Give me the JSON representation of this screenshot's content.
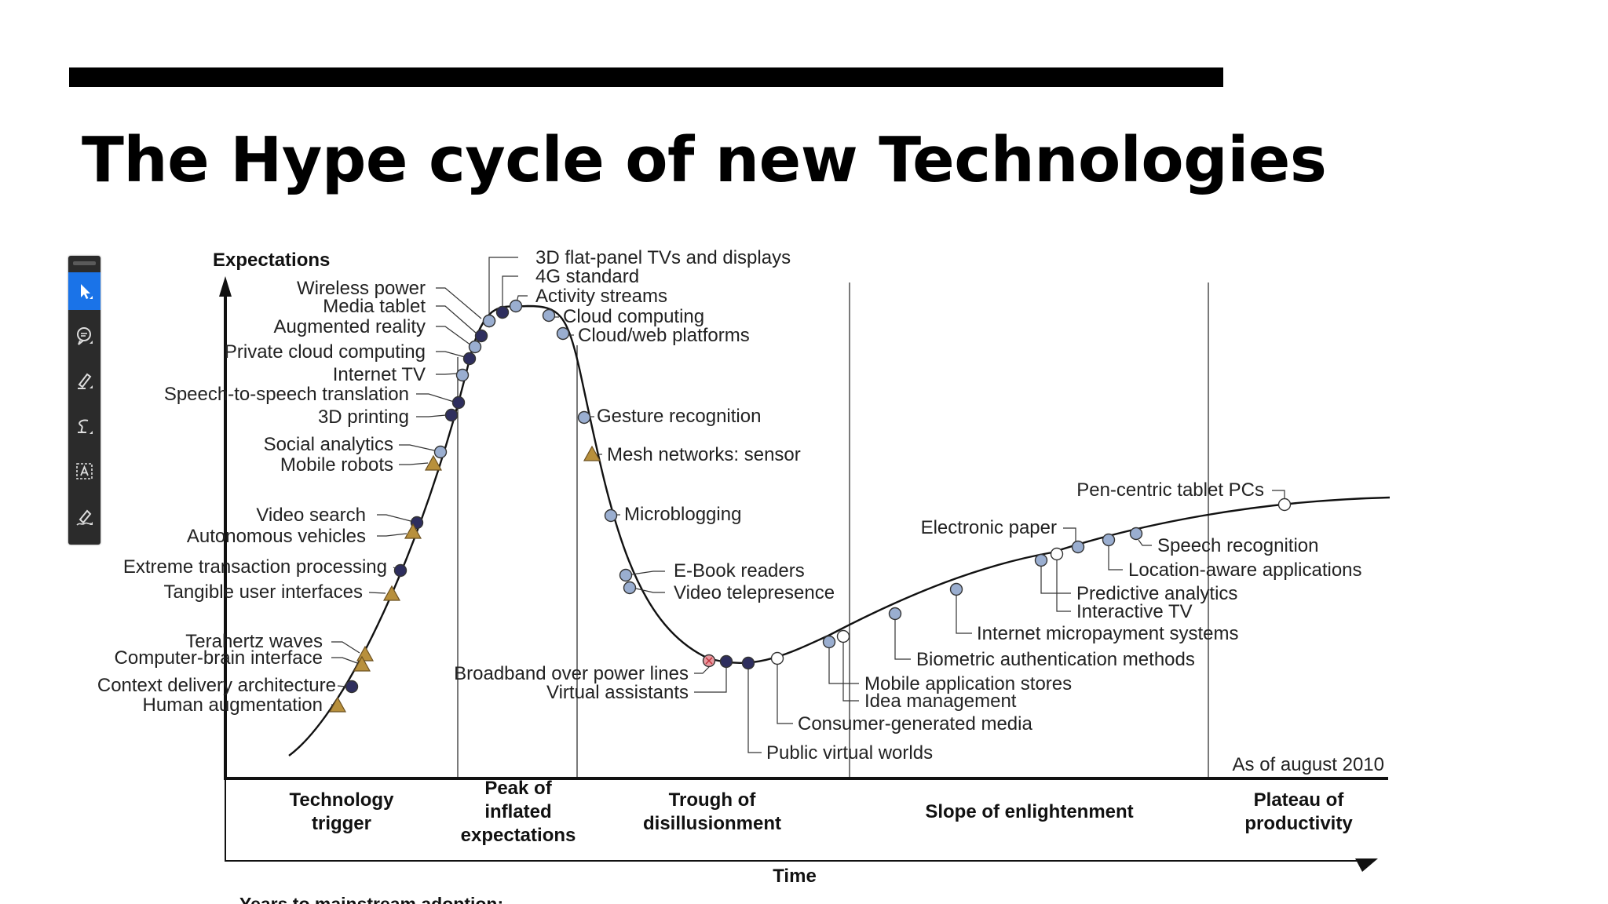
{
  "slide": {
    "title": "The Hype cycle of new Technologies"
  },
  "toolbar": {
    "tools": [
      {
        "name": "select-tool",
        "icon": "pointer-icon",
        "active": true
      },
      {
        "name": "comment-tool",
        "icon": "speech-bubble-icon",
        "active": false
      },
      {
        "name": "highlight-tool",
        "icon": "highlighter-icon",
        "active": false
      },
      {
        "name": "draw-tool",
        "icon": "freehand-icon",
        "active": false
      },
      {
        "name": "text-box-tool",
        "icon": "text-box-icon",
        "active": false
      },
      {
        "name": "signature-tool",
        "icon": "pen-signature-icon",
        "active": false
      }
    ]
  },
  "chart_data": {
    "type": "scatter",
    "title": "",
    "ylabel": "Expectations",
    "xlabel": "Time",
    "note": "As of august 2010",
    "footer": "Years to mainstream adoption:",
    "phases": [
      "Technology trigger",
      "Peak of inflated expectations",
      "Trough of disillusionment",
      "Slope of enlightenment",
      "Plateau of productivity"
    ],
    "colors": {
      "dark": "#2e2e5e",
      "light": "#9aaed0",
      "triangle": "#b8903c",
      "open": "#ffffff",
      "red": "#e89aa0"
    },
    "technologies": [
      {
        "name": "3D flat-panel TVs and displays",
        "marker": "light"
      },
      {
        "name": "4G standard",
        "marker": "dark"
      },
      {
        "name": "Activity streams",
        "marker": "light"
      },
      {
        "name": "Wireless power",
        "marker": "light"
      },
      {
        "name": "Media tablet",
        "marker": "dark"
      },
      {
        "name": "Augmented reality",
        "marker": "light"
      },
      {
        "name": "Private cloud computing",
        "marker": "dark"
      },
      {
        "name": "Internet TV",
        "marker": "light"
      },
      {
        "name": "Speech-to-speech translation",
        "marker": "dark"
      },
      {
        "name": "3D printing",
        "marker": "dark"
      },
      {
        "name": "Cloud computing",
        "marker": "light"
      },
      {
        "name": "Cloud/web platforms",
        "marker": "light"
      },
      {
        "name": "Social analytics",
        "marker": "light"
      },
      {
        "name": "Mobile robots",
        "marker": "triangle"
      },
      {
        "name": "Video search",
        "marker": "dark"
      },
      {
        "name": "Autonomous vehicles",
        "marker": "triangle"
      },
      {
        "name": "Extreme transaction processing",
        "marker": "dark"
      },
      {
        "name": "Tangible user interfaces",
        "marker": "triangle"
      },
      {
        "name": "Terahertz waves",
        "marker": "triangle"
      },
      {
        "name": "Computer-brain interface",
        "marker": "triangle"
      },
      {
        "name": "Context delivery architecture",
        "marker": "dark"
      },
      {
        "name": "Human augmentation",
        "marker": "triangle"
      },
      {
        "name": "Gesture recognition",
        "marker": "light"
      },
      {
        "name": "Mesh networks: sensor",
        "marker": "triangle"
      },
      {
        "name": "Microblogging",
        "marker": "light"
      },
      {
        "name": "E-Book readers",
        "marker": "light"
      },
      {
        "name": "Video telepresence",
        "marker": "light"
      },
      {
        "name": "Broadband over power lines",
        "marker": "red"
      },
      {
        "name": "Virtual assistants",
        "marker": "dark"
      },
      {
        "name": "Public virtual worlds",
        "marker": "dark"
      },
      {
        "name": "Consumer-generated media",
        "marker": "open"
      },
      {
        "name": "Mobile application stores",
        "marker": "light"
      },
      {
        "name": "Idea management",
        "marker": "open"
      },
      {
        "name": "Biometric authentication methods",
        "marker": "light"
      },
      {
        "name": "Internet micropayment systems",
        "marker": "light"
      },
      {
        "name": "Electronic paper",
        "marker": "light"
      },
      {
        "name": "Predictive analytics",
        "marker": "light"
      },
      {
        "name": "Interactive TV",
        "marker": "open"
      },
      {
        "name": "Speech recognition",
        "marker": "light"
      },
      {
        "name": "Location-aware applications",
        "marker": "light"
      },
      {
        "name": "Pen-centric tablet PCs",
        "marker": "open"
      }
    ]
  }
}
